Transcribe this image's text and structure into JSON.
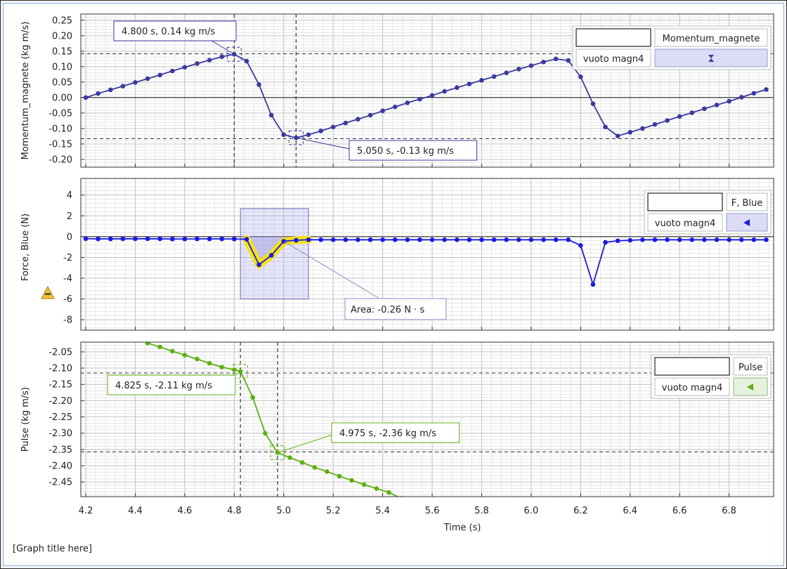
{
  "footer": {
    "graph_title": "[Graph title here]"
  },
  "x_axis": {
    "label": "Time (s)",
    "range": [
      4.18,
      6.98
    ],
    "ticks": [
      4.2,
      4.4,
      4.6,
      4.8,
      5.0,
      5.2,
      5.4,
      5.6,
      5.8,
      6.0,
      6.2,
      6.4,
      6.6,
      6.8
    ],
    "tick_labels": [
      "4.2",
      "4.4",
      "4.6",
      "4.8",
      "5.0",
      "5.2",
      "5.4",
      "5.6",
      "5.8",
      "6.0",
      "6.2",
      "6.4",
      "6.6",
      "6.8"
    ]
  },
  "chart_data": [
    {
      "type": "line",
      "ylabel": "Momentum_magnete (kg m/s)",
      "ylim": [
        -0.225,
        0.27
      ],
      "y_ticks": [
        0.25,
        0.2,
        0.15,
        0.1,
        0.05,
        0.0,
        -0.05,
        -0.1,
        -0.15,
        -0.2
      ],
      "y_tick_labels": [
        "0.25",
        "0.20",
        "0.15",
        "0.10",
        "0.05",
        "0.00",
        "-0.05",
        "-0.10",
        "-0.15",
        "-0.20"
      ],
      "color": "#3a3aa0",
      "legend": {
        "row1": "Momentum_magnete",
        "row2": "vuoto magn4",
        "symbol": "hourglass-icon"
      },
      "series": [
        {
          "name": "Momentum_magnete",
          "x": [
            4.2,
            4.25,
            4.3,
            4.35,
            4.4,
            4.45,
            4.5,
            4.55,
            4.6,
            4.65,
            4.7,
            4.75,
            4.8,
            4.85,
            4.9,
            4.95,
            5.0,
            5.05,
            5.1,
            5.15,
            5.2,
            5.25,
            5.3,
            5.35,
            5.4,
            5.45,
            5.5,
            5.55,
            5.6,
            5.65,
            5.7,
            5.75,
            5.8,
            5.85,
            5.9,
            5.95,
            6.0,
            6.05,
            6.1,
            6.15,
            6.2,
            6.25,
            6.3,
            6.35,
            6.4,
            6.45,
            6.5,
            6.55,
            6.6,
            6.65,
            6.7,
            6.75,
            6.8,
            6.85,
            6.9,
            6.95
          ],
          "values": [
            0.0,
            0.013,
            0.025,
            0.037,
            0.049,
            0.061,
            0.073,
            0.086,
            0.098,
            0.11,
            0.121,
            0.132,
            0.14,
            0.118,
            0.042,
            -0.057,
            -0.12,
            -0.13,
            -0.12,
            -0.108,
            -0.095,
            -0.082,
            -0.07,
            -0.057,
            -0.043,
            -0.03,
            -0.017,
            -0.005,
            0.007,
            0.02,
            0.032,
            0.044,
            0.056,
            0.068,
            0.08,
            0.092,
            0.103,
            0.115,
            0.125,
            0.12,
            0.067,
            -0.02,
            -0.095,
            -0.124,
            -0.112,
            -0.1,
            -0.087,
            -0.074,
            -0.061,
            -0.049,
            -0.036,
            -0.024,
            -0.012,
            0.001,
            0.014,
            0.026
          ]
        }
      ],
      "markers": [
        4.8,
        5.05
      ],
      "h_lines": [
        0.142,
        -0.133
      ],
      "annotations": [
        {
          "text": "4.800 s, 0.14 kg m/s",
          "x": 4.8,
          "y": 0.14
        },
        {
          "text": "5.050 s, -0.13 kg m/s",
          "x": 5.05,
          "y": -0.13
        }
      ]
    },
    {
      "type": "line",
      "ylabel": "Force, Blue (N)",
      "ylim": [
        -9.0,
        5.6
      ],
      "y_ticks": [
        4,
        2,
        0,
        -2,
        -4,
        -6,
        -8
      ],
      "y_tick_labels": [
        "4",
        "2",
        "0",
        "-2",
        "-4",
        "-6",
        "-8"
      ],
      "color": "#1a1ae0",
      "legend": {
        "row1": "F, Blue",
        "row2": "vuoto magn4",
        "symbol": "triangle-left-icon"
      },
      "series": [
        {
          "name": "F, Blue",
          "x": [
            4.2,
            4.25,
            4.3,
            4.35,
            4.4,
            4.45,
            4.5,
            4.55,
            4.6,
            4.65,
            4.7,
            4.75,
            4.8,
            4.85,
            4.9,
            4.95,
            5.0,
            5.05,
            5.1,
            5.15,
            5.2,
            5.25,
            5.3,
            5.35,
            5.4,
            5.45,
            5.5,
            5.55,
            5.6,
            5.65,
            5.7,
            5.75,
            5.8,
            5.85,
            5.9,
            5.95,
            6.0,
            6.05,
            6.1,
            6.15,
            6.2,
            6.25,
            6.3,
            6.35,
            6.4,
            6.45,
            6.5,
            6.55,
            6.6,
            6.65,
            6.7,
            6.75,
            6.8,
            6.85,
            6.9,
            6.95
          ],
          "values": [
            -0.2,
            -0.22,
            -0.22,
            -0.21,
            -0.21,
            -0.21,
            -0.21,
            -0.23,
            -0.23,
            -0.22,
            -0.22,
            -0.22,
            -0.23,
            -0.25,
            -2.7,
            -1.8,
            -0.45,
            -0.35,
            -0.3,
            -0.3,
            -0.3,
            -0.3,
            -0.3,
            -0.3,
            -0.3,
            -0.3,
            -0.3,
            -0.3,
            -0.3,
            -0.3,
            -0.3,
            -0.3,
            -0.3,
            -0.3,
            -0.3,
            -0.3,
            -0.3,
            -0.3,
            -0.3,
            -0.3,
            -0.85,
            -4.6,
            -0.55,
            -0.4,
            -0.35,
            -0.3,
            -0.3,
            -0.3,
            -0.3,
            -0.3,
            -0.3,
            -0.3,
            -0.3,
            -0.3,
            -0.3,
            -0.3
          ]
        }
      ],
      "area_selection": {
        "x_range": [
          4.825,
          5.1
        ],
        "y_range": [
          -6.0,
          2.7
        ],
        "label": "Area: -0.26 N · s"
      }
    },
    {
      "type": "line",
      "ylabel": "Pulse (kg m/s)",
      "ylim": [
        -2.495,
        -2.02
      ],
      "y_ticks": [
        -2.05,
        -2.1,
        -2.15,
        -2.2,
        -2.25,
        -2.3,
        -2.35,
        -2.4,
        -2.45
      ],
      "y_tick_labels": [
        "-2.05",
        "-2.10",
        "-2.15",
        "-2.20",
        "-2.25",
        "-2.30",
        "-2.35",
        "-2.40",
        "-2.45"
      ],
      "color": "#5cb010",
      "legend": {
        "row1": "Pulse",
        "row2": "vuoto magn4",
        "symbol": "triangle-left-icon"
      },
      "series": [
        {
          "name": "Pulse",
          "x": [
            4.4,
            4.45,
            4.5,
            4.55,
            4.6,
            4.65,
            4.7,
            4.75,
            4.8,
            4.825,
            4.875,
            4.925,
            4.975,
            5.025,
            5.075,
            5.125,
            5.175,
            5.225,
            5.275,
            5.325,
            5.375,
            5.425,
            5.475
          ],
          "values": [
            -1.98,
            -2.023,
            -2.035,
            -2.048,
            -2.06,
            -2.072,
            -2.085,
            -2.097,
            -2.105,
            -2.11,
            -2.19,
            -2.3,
            -2.36,
            -2.375,
            -2.39,
            -2.405,
            -2.418,
            -2.432,
            -2.445,
            -2.458,
            -2.47,
            -2.482,
            -2.5
          ]
        }
      ],
      "markers": [
        4.825,
        4.975
      ],
      "h_lines": [
        -2.115,
        -2.357
      ],
      "annotations": [
        {
          "text": "4.825 s, -2.11 kg m/s",
          "x": 4.825,
          "y": -2.11
        },
        {
          "text": "4.975 s, -2.36 kg m/s",
          "x": 4.975,
          "y": -2.36
        }
      ]
    }
  ]
}
